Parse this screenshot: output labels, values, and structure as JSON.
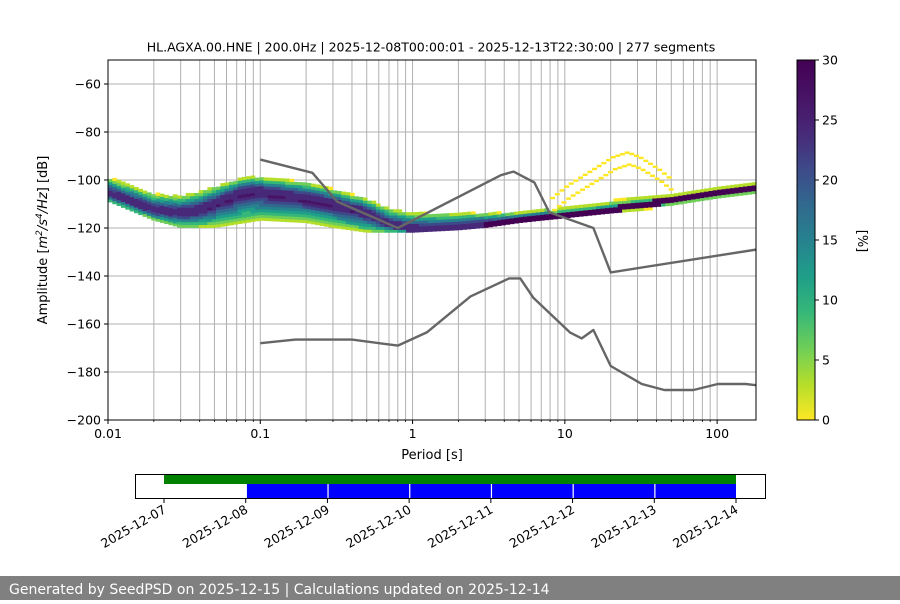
{
  "chart_data": {
    "type": "heatmap",
    "title": "HL.AGXA.00.HNE | 200.0Hz | 2025-12-08T00:00:01 - 2025-12-13T22:30:00 | 277 segments",
    "xlabel": "Period [s]",
    "ylabel_parts": [
      "Amplitude [",
      "m",
      "2",
      "/s",
      "4",
      "/Hz",
      "] [dB]"
    ],
    "x_scale": "log",
    "xlim": [
      0.01,
      180
    ],
    "ylim": [
      -200,
      -50
    ],
    "xticks": [
      0.01,
      0.1,
      1,
      10,
      100
    ],
    "xtick_labels": [
      "0.01",
      "0.1",
      "1",
      "10",
      "100"
    ],
    "yticks": [
      -60,
      -80,
      -100,
      -120,
      -140,
      -160,
      -180,
      -200
    ],
    "ytick_labels": [
      "−60",
      "−80",
      "−100",
      "−120",
      "−140",
      "−160",
      "−180",
      "−200"
    ],
    "grid": true,
    "colorbar": {
      "label": "[%]",
      "range": [
        0,
        30
      ],
      "ticks": [
        0,
        5,
        10,
        15,
        20,
        25,
        30
      ],
      "tick_labels": [
        "0",
        "5",
        "10",
        "15",
        "20",
        "25",
        "30"
      ]
    },
    "psd_mode": {
      "period": [
        0.01,
        0.015,
        0.02,
        0.03,
        0.04,
        0.06,
        0.08,
        0.1,
        0.13,
        0.2,
        0.3,
        0.5,
        0.7,
        1,
        1.5,
        2,
        3,
        5,
        7,
        10,
        15,
        20,
        30,
        50,
        100,
        180
      ],
      "db": [
        -106,
        -110,
        -113,
        -114,
        -113,
        -108,
        -105,
        -105,
        -106,
        -108,
        -110,
        -114,
        -119,
        -121,
        -121,
        -120,
        -119,
        -117,
        -116,
        -115,
        -114,
        -113,
        -111,
        -109,
        -106,
        -104
      ]
    },
    "spread": {
      "period": [
        0.01,
        0.02,
        0.03,
        0.05,
        0.08,
        0.1,
        0.2,
        0.3,
        0.5,
        0.7,
        1,
        2,
        3,
        5,
        7,
        10,
        20,
        50,
        100,
        180
      ],
      "upper_db": [
        -99,
        -106,
        -107,
        -103,
        -99,
        -99,
        -101,
        -104,
        -108,
        -112,
        -114,
        -114,
        -114,
        -114,
        -113,
        -110,
        -107,
        -105,
        -102,
        -100
      ],
      "lower_db": [
        -110,
        -118,
        -121,
        -121,
        -119,
        -118,
        -119,
        -121,
        -123,
        -123,
        -123,
        -122,
        -121,
        -119,
        -118,
        -117,
        -115,
        -113,
        -110,
        -108
      ]
    },
    "secondary_band": {
      "period": [
        8,
        10,
        15,
        20,
        25,
        30,
        40,
        50
      ],
      "db": [
        -108,
        -103,
        -96,
        -91,
        -89,
        -91,
        -96,
        -101
      ]
    },
    "series": [
      {
        "period": [
          0.1,
          0.22,
          0.32,
          0.8,
          3.8,
          4.6,
          6.3,
          7.9,
          15.4,
          20,
          180
        ],
        "db": [
          -91.5,
          -97,
          -109,
          -120,
          -98,
          -96.5,
          -101,
          -113.5,
          -120,
          -138.5,
          -129
        ]
      },
      {
        "period": [
          0.1,
          0.17,
          0.4,
          0.8,
          1.24,
          2.4,
          4.3,
          5.1,
          6.2,
          10.8,
          12.9,
          15.4,
          20,
          32,
          45,
          70,
          101,
          154,
          180
        ],
        "db": [
          -168,
          -166.5,
          -166.5,
          -169,
          -163.5,
          -148.5,
          -141,
          -141,
          -149,
          -163.5,
          -166,
          -162.5,
          -177.5,
          -185,
          -187.5,
          -187.5,
          -185,
          -185,
          -185.5
        ]
      }
    ]
  },
  "timeline": {
    "dates": [
      "2025-12-07",
      "2025-12-08",
      "2025-12-09",
      "2025-12-10",
      "2025-12-11",
      "2025-12-12",
      "2025-12-13",
      "2025-12-14"
    ],
    "availability_span": [
      "2025-12-07",
      "2025-12-14"
    ],
    "segment_boundaries": [
      "2025-12-08",
      "2025-12-09",
      "2025-12-10",
      "2025-12-11",
      "2025-12-12",
      "2025-12-13",
      "2025-12-14"
    ]
  },
  "colors": {
    "envelope_line": "#666666",
    "availability_bar": "#008000",
    "segment_bar": "#0000ff",
    "footer_bg": "#808080",
    "grid": "#b0b0b0"
  },
  "footer": {
    "text": "Generated by SeedPSD on 2025-12-15 | Calculations updated on 2025-12-14"
  }
}
